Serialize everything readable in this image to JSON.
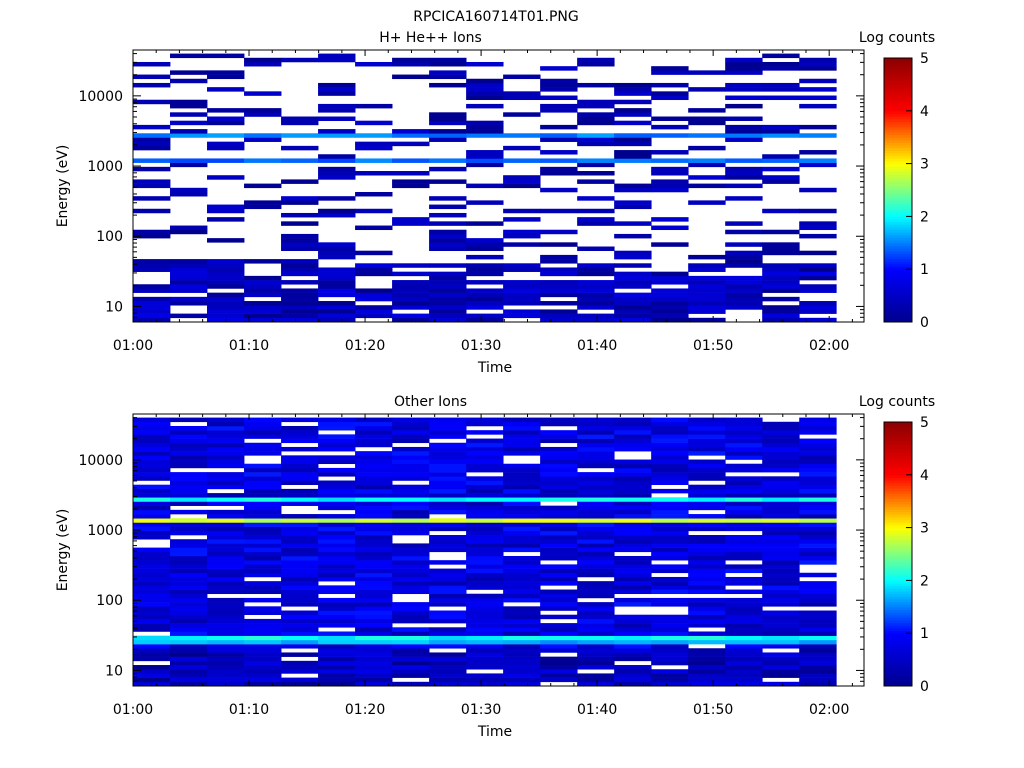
{
  "page_title": "RPCICA160714T01.PNG",
  "colors": {
    "colormap": [
      "#00008c",
      "#0000ff",
      "#00ffff",
      "#ffff00",
      "#ff0000",
      "#8c0000"
    ],
    "background": "#ffffff",
    "axis": "#000000"
  },
  "chart_data": [
    {
      "type": "heatmap",
      "title": "H+ He++ Ions",
      "xlabel": "Time",
      "ylabel": "Energy (eV)",
      "x_ticks": [
        "01:00",
        "01:10",
        "01:20",
        "01:30",
        "01:40",
        "01:50",
        "02:00"
      ],
      "x_range": [
        "01:00",
        "02:03"
      ],
      "y_scale": "log",
      "y_ticks": [
        10,
        100,
        1000,
        10000
      ],
      "y_range": [
        6,
        45000
      ],
      "colorbar": {
        "label": "Log counts",
        "range": [
          0,
          5
        ],
        "ticks": [
          0,
          1,
          2,
          3,
          4,
          5
        ]
      },
      "n_time_bins": 19,
      "n_energy_bins": 64,
      "bands": [
        {
          "energy_ev": 2600,
          "log_counts": 1.5
        },
        {
          "energy_ev": 1250,
          "log_counts": 1.4
        }
      ],
      "background": {
        "fill_fraction": 0.32,
        "log_counts_range": [
          0.0,
          0.6
        ]
      },
      "low_energy_fill": {
        "below_ev": 40,
        "fill_fraction": 0.75,
        "log_counts_range": [
          0.0,
          0.8
        ]
      }
    },
    {
      "type": "heatmap",
      "title": "Other Ions",
      "xlabel": "Time",
      "ylabel": "Energy (eV)",
      "x_ticks": [
        "01:00",
        "01:10",
        "01:20",
        "01:30",
        "01:40",
        "01:50",
        "02:00"
      ],
      "x_range": [
        "01:00",
        "02:03"
      ],
      "y_scale": "log",
      "y_ticks": [
        10,
        100,
        1000,
        10000
      ],
      "y_range": [
        6,
        45000
      ],
      "colorbar": {
        "label": "Log counts",
        "range": [
          0,
          5
        ],
        "ticks": [
          0,
          1,
          2,
          3,
          4,
          5
        ]
      },
      "n_time_bins": 19,
      "n_energy_bins": 64,
      "bands": [
        {
          "energy_ev": 2700,
          "log_counts": 2.0
        },
        {
          "energy_ev": 1300,
          "log_counts": 2.8
        },
        {
          "energy_ev": 29,
          "log_counts": 2.0
        },
        {
          "energy_ev": 24,
          "log_counts": 1.7
        }
      ],
      "background": {
        "fill_fraction": 0.9,
        "log_counts_range": [
          0.3,
          1.1
        ]
      },
      "low_energy_fill": {
        "below_ev": 20,
        "fill_fraction": 0.92,
        "log_counts_range": [
          0.0,
          0.8
        ]
      }
    }
  ]
}
